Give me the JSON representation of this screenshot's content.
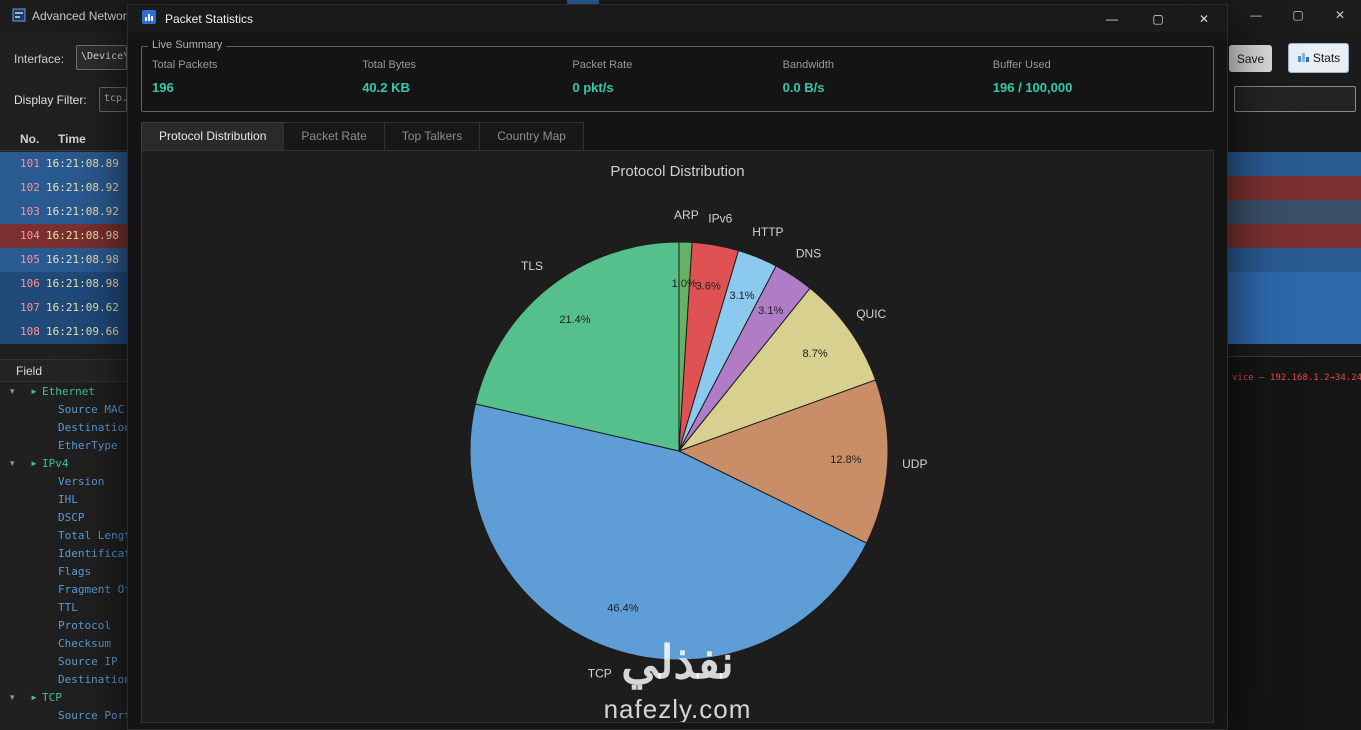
{
  "icons": {
    "minimize": "—",
    "maximize": "▢",
    "close": "✕",
    "expander": "▾",
    "branch": "►"
  },
  "colors": {
    "accent_teal": "#35c9ab",
    "row_blue": "#2a5a92",
    "row_red": "#7a3030",
    "row_dim": "#1f4a7a"
  },
  "background_window": {
    "title": "Advanced Networ",
    "interface_label": "Interface:",
    "interface_value": "\\Device\\N",
    "filter_label": "Display Filter:",
    "filter_value": "tcp.",
    "columns": {
      "no": "No.",
      "time": "Time"
    },
    "packets": [
      {
        "no": "101",
        "time": "16:21:08.89",
        "color": "blue"
      },
      {
        "no": "102",
        "time": "16:21:08.92",
        "color": "blue"
      },
      {
        "no": "103",
        "time": "16:21:08.92",
        "color": "blue"
      },
      {
        "no": "104",
        "time": "16:21:08.98",
        "color": "red"
      },
      {
        "no": "105",
        "time": "16:21:08.98",
        "color": "blue"
      },
      {
        "no": "106",
        "time": "16:21:08.98",
        "color": "dim"
      },
      {
        "no": "107",
        "time": "16:21:09.62",
        "color": "dim"
      },
      {
        "no": "108",
        "time": "16:21:09.66",
        "color": "dim"
      }
    ],
    "field_label": "Field",
    "tree": [
      {
        "label": "Ethernet",
        "children": [
          "Source MAC",
          "Destination M",
          "EtherType"
        ]
      },
      {
        "label": "IPv4",
        "children": [
          "Version",
          "IHL",
          "DSCP",
          "Total Length",
          "Identification",
          "Flags",
          "Fragment Off",
          "TTL",
          "Protocol",
          "Checksum",
          "Source IP",
          "Destination IP"
        ]
      },
      {
        "label": "TCP",
        "children": [
          "Source Port"
        ]
      }
    ],
    "save_button": "Save",
    "stats_button": "Stats",
    "right_rows": [
      "#2a5a92",
      "#7a3030",
      "#3a4f68",
      "#7a3030",
      "#2a5a92",
      "#2e68ab",
      "#2e68ab",
      "#2e68ab"
    ],
    "detail_text": "vice — 192.168.1.2→34.24"
  },
  "dialog": {
    "title": "Packet Statistics",
    "live_summary": {
      "title": "Live Summary",
      "metrics": [
        {
          "label": "Total Packets",
          "value": "196"
        },
        {
          "label": "Total Bytes",
          "value": "40.2 KB"
        },
        {
          "label": "Packet Rate",
          "value": "0 pkt/s"
        },
        {
          "label": "Bandwidth",
          "value": "0.0 B/s"
        },
        {
          "label": "Buffer Used",
          "value": "196 / 100,000"
        }
      ]
    },
    "tabs": [
      {
        "label": "Protocol Distribution",
        "active": true
      },
      {
        "label": "Packet Rate",
        "active": false
      },
      {
        "label": "Top Talkers",
        "active": false
      },
      {
        "label": "Country Map",
        "active": false
      }
    ]
  },
  "chart_data": {
    "type": "pie",
    "title": "Protocol Distribution",
    "slices": [
      {
        "label": "ARP",
        "value": 1.0,
        "pct": "1.0%",
        "color": "#66b366"
      },
      {
        "label": "IPv6",
        "value": 3.6,
        "pct": "3.6%",
        "color": "#df5152"
      },
      {
        "label": "HTTP",
        "value": 3.1,
        "pct": "3.1%",
        "color": "#8cc9ee"
      },
      {
        "label": "DNS",
        "value": 3.1,
        "pct": "3.1%",
        "color": "#b07cc6"
      },
      {
        "label": "QUIC",
        "value": 8.7,
        "pct": "8.7%",
        "color": "#d8d08e"
      },
      {
        "label": "UDP",
        "value": 12.8,
        "pct": "12.8%",
        "color": "#c98e68"
      },
      {
        "label": "TCP",
        "value": 46.4,
        "pct": "46.4%",
        "color": "#5f9dd6"
      },
      {
        "label": "TLS",
        "value": 21.4,
        "pct": "21.4%",
        "color": "#55c08c"
      }
    ],
    "start_angle_deg": 90,
    "direction": "clockwise",
    "label_distance": 1.13,
    "pct_distance": 0.8
  },
  "watermark": {
    "arabic": "نفذلي",
    "latin": "nafezly.com"
  }
}
